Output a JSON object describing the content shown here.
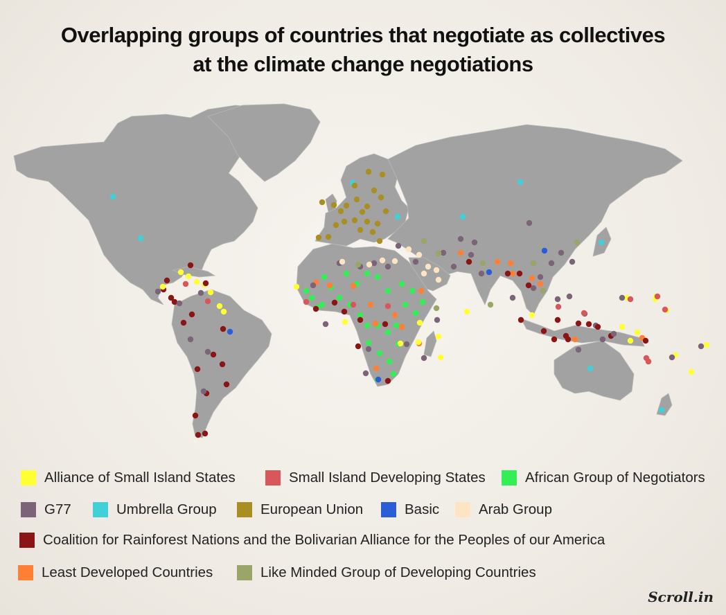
{
  "title": {
    "line1": "Overlapping groups of countries that negotiate as collectives",
    "line2": "at the climate change negotiations"
  },
  "colors": {
    "land": "#a2a2a2",
    "aosis": "#ffff33",
    "sids": "#d9575b",
    "african_group": "#33ee55",
    "g77": "#7b6478",
    "umbrella": "#3fd0d8",
    "eu": "#a98e22",
    "basic": "#2b5ed6",
    "arab": "#fde4c2",
    "cfrn_alba": "#8b1515",
    "ldc": "#ff7f35",
    "lmdc": "#9aa56a"
  },
  "legend": [
    {
      "key": "aosis",
      "label": "Alliance of Small Island States"
    },
    {
      "key": "sids",
      "label": "Small Island Developing States"
    },
    {
      "key": "african_group",
      "label": "African Group of Negotiators"
    },
    {
      "key": "g77",
      "label": "G77"
    },
    {
      "key": "umbrella",
      "label": "Umbrella Group"
    },
    {
      "key": "eu",
      "label": "European Union"
    },
    {
      "key": "basic",
      "label": "Basic"
    },
    {
      "key": "arab",
      "label": "Arab Group"
    },
    {
      "key": "cfrn_alba",
      "label": "Coalition for Rainforest Nations and the Bolivarian Alliance for the Peoples of our America"
    },
    {
      "key": "ldc",
      "label": "Least Developed Countries"
    },
    {
      "key": "lmdc",
      "label": "Like Minded Group of Developing Countries"
    }
  ],
  "brand": "Scroll.in"
}
